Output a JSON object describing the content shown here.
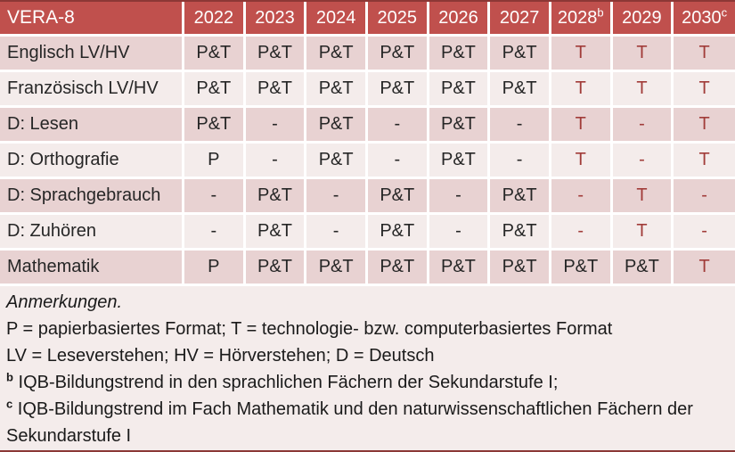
{
  "colors": {
    "header_bg": "#C0504D",
    "header_text": "#FFFFFF",
    "row_dark": "#E8D2D2",
    "row_light": "#F4ECEB",
    "text": "#262626",
    "accent_red": "#A13C39",
    "divider": "#FFFFFF",
    "outer_border": "#8C3836"
  },
  "table": {
    "title": "VERA-8",
    "columns": [
      {
        "label": "2022",
        "sup": ""
      },
      {
        "label": "2023",
        "sup": ""
      },
      {
        "label": "2024",
        "sup": ""
      },
      {
        "label": "2025",
        "sup": ""
      },
      {
        "label": "2026",
        "sup": ""
      },
      {
        "label": "2027",
        "sup": ""
      },
      {
        "label": "2028",
        "sup": "b"
      },
      {
        "label": "2029",
        "sup": ""
      },
      {
        "label": "2030",
        "sup": "c"
      }
    ],
    "rows": [
      {
        "label": "Englisch LV/HV",
        "cells": [
          {
            "text": "P&T",
            "red": false
          },
          {
            "text": "P&T",
            "red": false
          },
          {
            "text": "P&T",
            "red": false
          },
          {
            "text": "P&T",
            "red": false
          },
          {
            "text": "P&T",
            "red": false
          },
          {
            "text": "P&T",
            "red": false
          },
          {
            "text": "T",
            "red": true
          },
          {
            "text": "T",
            "red": true
          },
          {
            "text": "T",
            "red": true
          }
        ]
      },
      {
        "label": "Französisch LV/HV",
        "cells": [
          {
            "text": "P&T",
            "red": false
          },
          {
            "text": "P&T",
            "red": false
          },
          {
            "text": "P&T",
            "red": false
          },
          {
            "text": "P&T",
            "red": false
          },
          {
            "text": "P&T",
            "red": false
          },
          {
            "text": "P&T",
            "red": false
          },
          {
            "text": "T",
            "red": true
          },
          {
            "text": "T",
            "red": true
          },
          {
            "text": "T",
            "red": true
          }
        ]
      },
      {
        "label": "D: Lesen",
        "cells": [
          {
            "text": "P&T",
            "red": false
          },
          {
            "text": "-",
            "red": false
          },
          {
            "text": "P&T",
            "red": false
          },
          {
            "text": "-",
            "red": false
          },
          {
            "text": "P&T",
            "red": false
          },
          {
            "text": "-",
            "red": false
          },
          {
            "text": "T",
            "red": true
          },
          {
            "text": "-",
            "red": true
          },
          {
            "text": "T",
            "red": true
          }
        ]
      },
      {
        "label": "D: Orthografie",
        "cells": [
          {
            "text": "P",
            "red": false
          },
          {
            "text": "-",
            "red": false
          },
          {
            "text": "P&T",
            "red": false
          },
          {
            "text": "-",
            "red": false
          },
          {
            "text": "P&T",
            "red": false
          },
          {
            "text": "-",
            "red": false
          },
          {
            "text": "T",
            "red": true
          },
          {
            "text": "-",
            "red": true
          },
          {
            "text": "T",
            "red": true
          }
        ]
      },
      {
        "label": "D: Sprachgebrauch",
        "cells": [
          {
            "text": "-",
            "red": false
          },
          {
            "text": "P&T",
            "red": false
          },
          {
            "text": "-",
            "red": false
          },
          {
            "text": "P&T",
            "red": false
          },
          {
            "text": "-",
            "red": false
          },
          {
            "text": "P&T",
            "red": false
          },
          {
            "text": "-",
            "red": true
          },
          {
            "text": "T",
            "red": true
          },
          {
            "text": "-",
            "red": true
          }
        ]
      },
      {
        "label": "D: Zuhören",
        "cells": [
          {
            "text": "-",
            "red": false
          },
          {
            "text": "P&T",
            "red": false
          },
          {
            "text": "-",
            "red": false
          },
          {
            "text": "P&T",
            "red": false
          },
          {
            "text": "-",
            "red": false
          },
          {
            "text": "P&T",
            "red": false
          },
          {
            "text": "-",
            "red": true
          },
          {
            "text": "T",
            "red": true
          },
          {
            "text": "-",
            "red": true
          }
        ]
      },
      {
        "label": "Mathematik",
        "cells": [
          {
            "text": "P",
            "red": false
          },
          {
            "text": "P&T",
            "red": false
          },
          {
            "text": "P&T",
            "red": false
          },
          {
            "text": "P&T",
            "red": false
          },
          {
            "text": "P&T",
            "red": false
          },
          {
            "text": "P&T",
            "red": false
          },
          {
            "text": "P&T",
            "red": false
          },
          {
            "text": "P&T",
            "red": false
          },
          {
            "text": "T",
            "red": true
          }
        ]
      }
    ]
  },
  "notes": {
    "lines": [
      {
        "sup": "",
        "text": "Anmerkungen.",
        "italic": true
      },
      {
        "sup": "",
        "text": "P = papierbasiertes Format; T = technologie- bzw. computerbasiertes Format",
        "italic": false
      },
      {
        "sup": "",
        "text": "LV = Leseverstehen; HV = Hörverstehen; D = Deutsch",
        "italic": false
      },
      {
        "sup": "b",
        "text": "IQB-Bildungstrend in den sprachlichen Fächern der Sekundarstufe I;",
        "italic": false
      },
      {
        "sup": "c",
        "text": "IQB-Bildungstrend im Fach Mathematik und den naturwissenschaftlichen Fächern der Sekundarstufe I",
        "italic": false
      }
    ]
  }
}
